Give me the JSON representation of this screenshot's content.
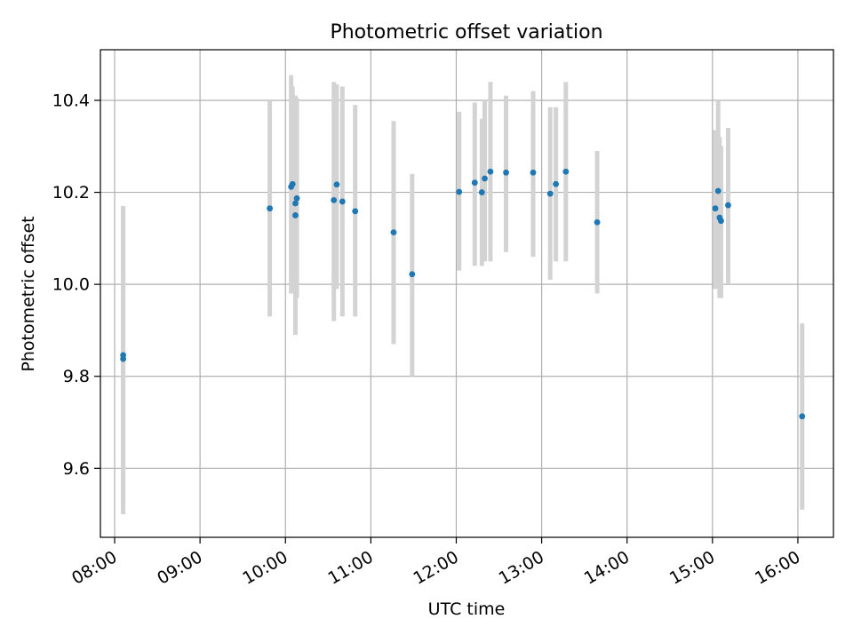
{
  "chart_data": {
    "type": "scatter",
    "title": "Photometric offset variation",
    "xlabel": "UTC time",
    "ylabel": "Photometric offset",
    "x_ticks": [
      "08:00",
      "09:00",
      "10:00",
      "11:00",
      "12:00",
      "13:00",
      "14:00",
      "15:00",
      "16:00"
    ],
    "y_ticks": [
      "9.6",
      "9.8",
      "10.0",
      "10.2",
      "10.4"
    ],
    "xlim": [
      "07:50",
      "16:25"
    ],
    "ylim": [
      9.45,
      10.51
    ],
    "grid": true,
    "colors": {
      "points": "#1f77b4",
      "errorbars": "#d3d3d3",
      "grid": "#b0b0b0"
    },
    "points": [
      {
        "t": "08:06",
        "y": 9.838,
        "ylo": 9.5,
        "yhi": 10.17
      },
      {
        "t": "08:06",
        "y": 9.846,
        "ylo": 9.52,
        "yhi": 10.17
      },
      {
        "t": "09:49",
        "y": 10.165,
        "ylo": 9.93,
        "yhi": 10.4
      },
      {
        "t": "10:04",
        "y": 10.212,
        "ylo": 9.98,
        "yhi": 10.455
      },
      {
        "t": "10:05",
        "y": 10.218,
        "ylo": 10.0,
        "yhi": 10.43
      },
      {
        "t": "10:07",
        "y": 10.176,
        "ylo": 9.9,
        "yhi": 10.41
      },
      {
        "t": "10:07",
        "y": 10.15,
        "ylo": 9.89,
        "yhi": 10.41
      },
      {
        "t": "10:08",
        "y": 10.187,
        "ylo": 9.97,
        "yhi": 10.405
      },
      {
        "t": "10:34",
        "y": 10.183,
        "ylo": 9.92,
        "yhi": 10.44
      },
      {
        "t": "10:36",
        "y": 10.217,
        "ylo": 9.99,
        "yhi": 10.435
      },
      {
        "t": "10:40",
        "y": 10.18,
        "ylo": 9.93,
        "yhi": 10.43
      },
      {
        "t": "10:49",
        "y": 10.159,
        "ylo": 9.93,
        "yhi": 10.39
      },
      {
        "t": "11:16",
        "y": 10.113,
        "ylo": 9.87,
        "yhi": 10.355
      },
      {
        "t": "11:29",
        "y": 10.022,
        "ylo": 9.8,
        "yhi": 10.24
      },
      {
        "t": "12:02",
        "y": 10.201,
        "ylo": 10.03,
        "yhi": 10.375
      },
      {
        "t": "12:13",
        "y": 10.221,
        "ylo": 10.04,
        "yhi": 10.395
      },
      {
        "t": "12:18",
        "y": 10.2,
        "ylo": 10.04,
        "yhi": 10.36
      },
      {
        "t": "12:20",
        "y": 10.23,
        "ylo": 10.05,
        "yhi": 10.4
      },
      {
        "t": "12:24",
        "y": 10.245,
        "ylo": 10.05,
        "yhi": 10.44
      },
      {
        "t": "12:35",
        "y": 10.243,
        "ylo": 10.07,
        "yhi": 10.41
      },
      {
        "t": "12:54",
        "y": 10.243,
        "ylo": 10.06,
        "yhi": 10.42
      },
      {
        "t": "13:06",
        "y": 10.197,
        "ylo": 10.01,
        "yhi": 10.385
      },
      {
        "t": "13:10",
        "y": 10.218,
        "ylo": 10.05,
        "yhi": 10.385
      },
      {
        "t": "13:17",
        "y": 10.245,
        "ylo": 10.05,
        "yhi": 10.44
      },
      {
        "t": "13:39",
        "y": 10.135,
        "ylo": 9.98,
        "yhi": 10.29
      },
      {
        "t": "15:02",
        "y": 10.165,
        "ylo": 9.99,
        "yhi": 10.335
      },
      {
        "t": "15:04",
        "y": 10.203,
        "ylo": 10.0,
        "yhi": 10.4
      },
      {
        "t": "15:05",
        "y": 10.145,
        "ylo": 9.97,
        "yhi": 10.32
      },
      {
        "t": "15:06",
        "y": 10.138,
        "ylo": 9.97,
        "yhi": 10.3
      },
      {
        "t": "15:11",
        "y": 10.172,
        "ylo": 10.0,
        "yhi": 10.34
      },
      {
        "t": "16:03",
        "y": 9.713,
        "ylo": 9.51,
        "yhi": 9.915
      }
    ]
  }
}
